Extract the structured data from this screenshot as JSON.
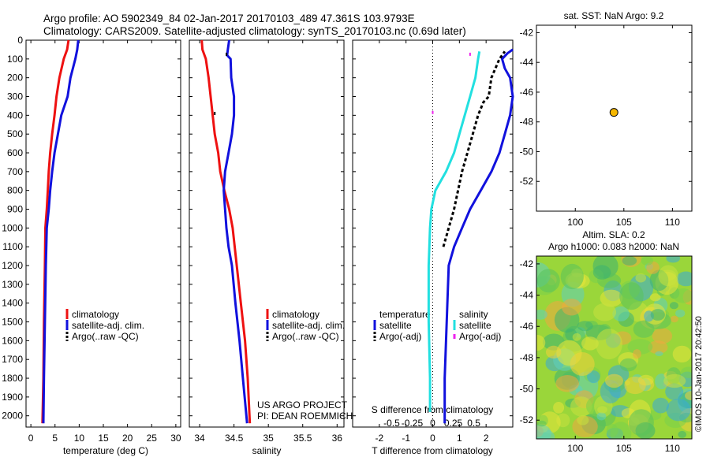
{
  "header": {
    "title_line1": "Argo profile: AO 5902349_84 02-Jan-2017 20170103_489 47.361S 103.9793E",
    "title_line2": "Climatology: CARS2009. Satellite-adjusted climatology: synTS_20170103.nc (0.69d later)"
  },
  "colors": {
    "climatology": "#ee1111",
    "satellite": "#1111dd",
    "argo": "#000000",
    "salinity_sat": "#22e0e0",
    "salinity_argo": "#ee22ee",
    "marker": "#f5b700"
  },
  "notes": {
    "project": "US ARGO PROJECT",
    "pi": "PI: DEAN ROEMMICH",
    "credit": "©IMOS 10-Jan-2017 20:42:50"
  },
  "chart_data": [
    {
      "type": "line",
      "id": "temperature",
      "xlabel": "temperature (deg C)",
      "xlim": [
        -1,
        31
      ],
      "xticks": [
        0,
        5,
        10,
        15,
        20,
        25,
        30
      ],
      "ylim": [
        2060,
        0
      ],
      "yticks": [
        0,
        100,
        200,
        300,
        400,
        500,
        600,
        700,
        800,
        900,
        1000,
        1100,
        1200,
        1300,
        1400,
        1500,
        1600,
        1700,
        1800,
        1900,
        2000
      ],
      "legend": [
        "climatology",
        "satellite-adj. clim.",
        "Argo(..raw -QC)"
      ],
      "series": [
        {
          "name": "climatology",
          "color_key": "climatology",
          "points": [
            [
              7.8,
              0
            ],
            [
              7.5,
              50
            ],
            [
              6.8,
              100
            ],
            [
              5.9,
              200
            ],
            [
              5.3,
              300
            ],
            [
              4.9,
              400
            ],
            [
              4.4,
              500
            ],
            [
              4.0,
              600
            ],
            [
              3.7,
              700
            ],
            [
              3.5,
              800
            ],
            [
              3.3,
              900
            ],
            [
              3.0,
              1000
            ],
            [
              2.9,
              1200
            ],
            [
              2.7,
              1500
            ],
            [
              2.6,
              1800
            ],
            [
              2.4,
              2040
            ]
          ]
        },
        {
          "name": "satellite-adj. clim.",
          "color_key": "satellite",
          "points": [
            [
              9.8,
              0
            ],
            [
              9.6,
              50
            ],
            [
              9.2,
              100
            ],
            [
              8.2,
              200
            ],
            [
              7.6,
              300
            ],
            [
              6.3,
              400
            ],
            [
              5.6,
              500
            ],
            [
              4.9,
              600
            ],
            [
              4.4,
              700
            ],
            [
              4.0,
              800
            ],
            [
              3.7,
              900
            ],
            [
              3.3,
              1000
            ],
            [
              3.1,
              1200
            ],
            [
              2.9,
              1500
            ],
            [
              2.7,
              1800
            ],
            [
              2.6,
              2040
            ]
          ]
        }
      ]
    },
    {
      "type": "line",
      "id": "salinity",
      "xlabel": "salinity",
      "xlim": [
        33.85,
        36.1
      ],
      "xticks": [
        34,
        34.5,
        35,
        35.5,
        36
      ],
      "xticklabels": [
        "34",
        "34.5",
        "35",
        "35.5",
        "36"
      ],
      "ylim": [
        2060,
        0
      ],
      "legend": [
        "climatology",
        "satellite-adj. clim.",
        "Argo(..raw -QC)"
      ],
      "series": [
        {
          "name": "climatology",
          "color_key": "climatology",
          "points": [
            [
              34.03,
              0
            ],
            [
              34.04,
              50
            ],
            [
              34.09,
              100
            ],
            [
              34.13,
              200
            ],
            [
              34.16,
              300
            ],
            [
              34.19,
              400
            ],
            [
              34.22,
              500
            ],
            [
              34.27,
              600
            ],
            [
              34.3,
              700
            ],
            [
              34.36,
              800
            ],
            [
              34.43,
              900
            ],
            [
              34.48,
              1000
            ],
            [
              34.54,
              1200
            ],
            [
              34.6,
              1400
            ],
            [
              34.66,
              1600
            ],
            [
              34.7,
              1800
            ],
            [
              34.73,
              2040
            ]
          ]
        },
        {
          "name": "satellite-adj. clim.",
          "color_key": "satellite",
          "points": [
            [
              34.43,
              0
            ],
            [
              34.41,
              50
            ],
            [
              34.4,
              80
            ],
            [
              34.45,
              100
            ],
            [
              34.46,
              200
            ],
            [
              34.5,
              300
            ],
            [
              34.5,
              400
            ],
            [
              34.47,
              500
            ],
            [
              34.42,
              600
            ],
            [
              34.37,
              700
            ],
            [
              34.35,
              800
            ],
            [
              34.37,
              900
            ],
            [
              34.39,
              1000
            ],
            [
              34.42,
              1100
            ],
            [
              34.47,
              1200
            ],
            [
              34.52,
              1400
            ],
            [
              34.58,
              1600
            ],
            [
              34.63,
              1800
            ],
            [
              34.69,
              2040
            ]
          ]
        }
      ],
      "markers": [
        [
          34.39,
          75
        ],
        [
          34.22,
          390
        ]
      ]
    },
    {
      "type": "line",
      "id": "difference",
      "xlabel": "T difference from climatology",
      "xlabel_top": "S difference from climatology",
      "xlim": [
        -3.0,
        3.0
      ],
      "xticks": [
        -2,
        -1,
        0,
        1,
        2
      ],
      "top_ticks": [
        [
          -0.5,
          "-0.5"
        ],
        [
          -0.25,
          "-0.25"
        ],
        [
          0,
          "0"
        ],
        [
          0.25,
          "0.25"
        ],
        [
          0.5,
          "0.5"
        ]
      ],
      "ylim": [
        2060,
        0
      ],
      "legend_temperature": [
        "temperature",
        "satellite",
        "Argo(-adj)"
      ],
      "legend_salinity": [
        "salinity",
        "satellite",
        "Argo(-adj)"
      ],
      "series": [
        {
          "name": "satellite",
          "color_key": "satellite",
          "points": [
            [
              0.45,
              2040
            ],
            [
              0.45,
              1800
            ],
            [
              0.5,
              1600
            ],
            [
              0.55,
              1400
            ],
            [
              0.6,
              1200
            ],
            [
              0.8,
              1100
            ],
            [
              1.1,
              1000
            ],
            [
              1.4,
              900
            ],
            [
              1.8,
              800
            ],
            [
              2.2,
              700
            ],
            [
              2.5,
              600
            ],
            [
              2.7,
              500
            ],
            [
              2.9,
              400
            ],
            [
              3.0,
              300
            ],
            [
              2.9,
              200
            ],
            [
              2.7,
              150
            ],
            [
              2.6,
              100
            ],
            [
              2.8,
              70
            ],
            [
              3.0,
              50
            ]
          ]
        },
        {
          "name": "salinity satellite",
          "color_key": "salinity_sat",
          "points": [
            [
              -0.1,
              1980
            ],
            [
              -0.1,
              1800
            ],
            [
              -0.15,
              1500
            ],
            [
              -0.15,
              1200
            ],
            [
              -0.1,
              1000
            ],
            [
              -0.05,
              900
            ],
            [
              0.1,
              800
            ],
            [
              0.5,
              700
            ],
            [
              0.8,
              600
            ],
            [
              1.0,
              500
            ],
            [
              1.2,
              400
            ],
            [
              1.4,
              300
            ],
            [
              1.6,
              200
            ],
            [
              1.7,
              100
            ],
            [
              1.75,
              60
            ]
          ]
        },
        {
          "name": "Argo(-adj)",
          "color_key": "argo",
          "dashed": true,
          "points": [
            [
              0.4,
              1100
            ],
            [
              0.6,
              1000
            ],
            [
              0.8,
              900
            ],
            [
              0.95,
              800
            ],
            [
              1.1,
              700
            ],
            [
              1.3,
              600
            ],
            [
              1.5,
              500
            ],
            [
              1.7,
              400
            ],
            [
              1.9,
              330
            ],
            [
              2.1,
              300
            ],
            [
              2.2,
              200
            ],
            [
              2.5,
              100
            ],
            [
              2.7,
              60
            ]
          ]
        }
      ],
      "markers": [
        [
          1.4,
          75
        ],
        [
          0.0,
          385
        ]
      ]
    },
    {
      "type": "scatter",
      "id": "sst-map",
      "title": "sat. SST: NaN Argo: 9.2",
      "xlim": [
        96,
        112
      ],
      "ylim": [
        -54,
        -41.5
      ],
      "xticks": [
        100,
        105,
        110
      ],
      "yticks": [
        -42,
        -44,
        -46,
        -48,
        -50,
        -52
      ],
      "points": [
        [
          103.98,
          -47.36
        ]
      ]
    },
    {
      "type": "heatmap",
      "id": "sla-map",
      "title_line1": "Altim. SLA: 0.2",
      "title_line2": "Argo h1000: 0.083 h2000: NaN",
      "xlim": [
        96,
        112
      ],
      "ylim": [
        -53.2,
        -41.5
      ],
      "xticks": [
        100,
        105,
        110
      ],
      "yticks": [
        -42,
        -44,
        -46,
        -48,
        -50,
        -52
      ]
    }
  ]
}
